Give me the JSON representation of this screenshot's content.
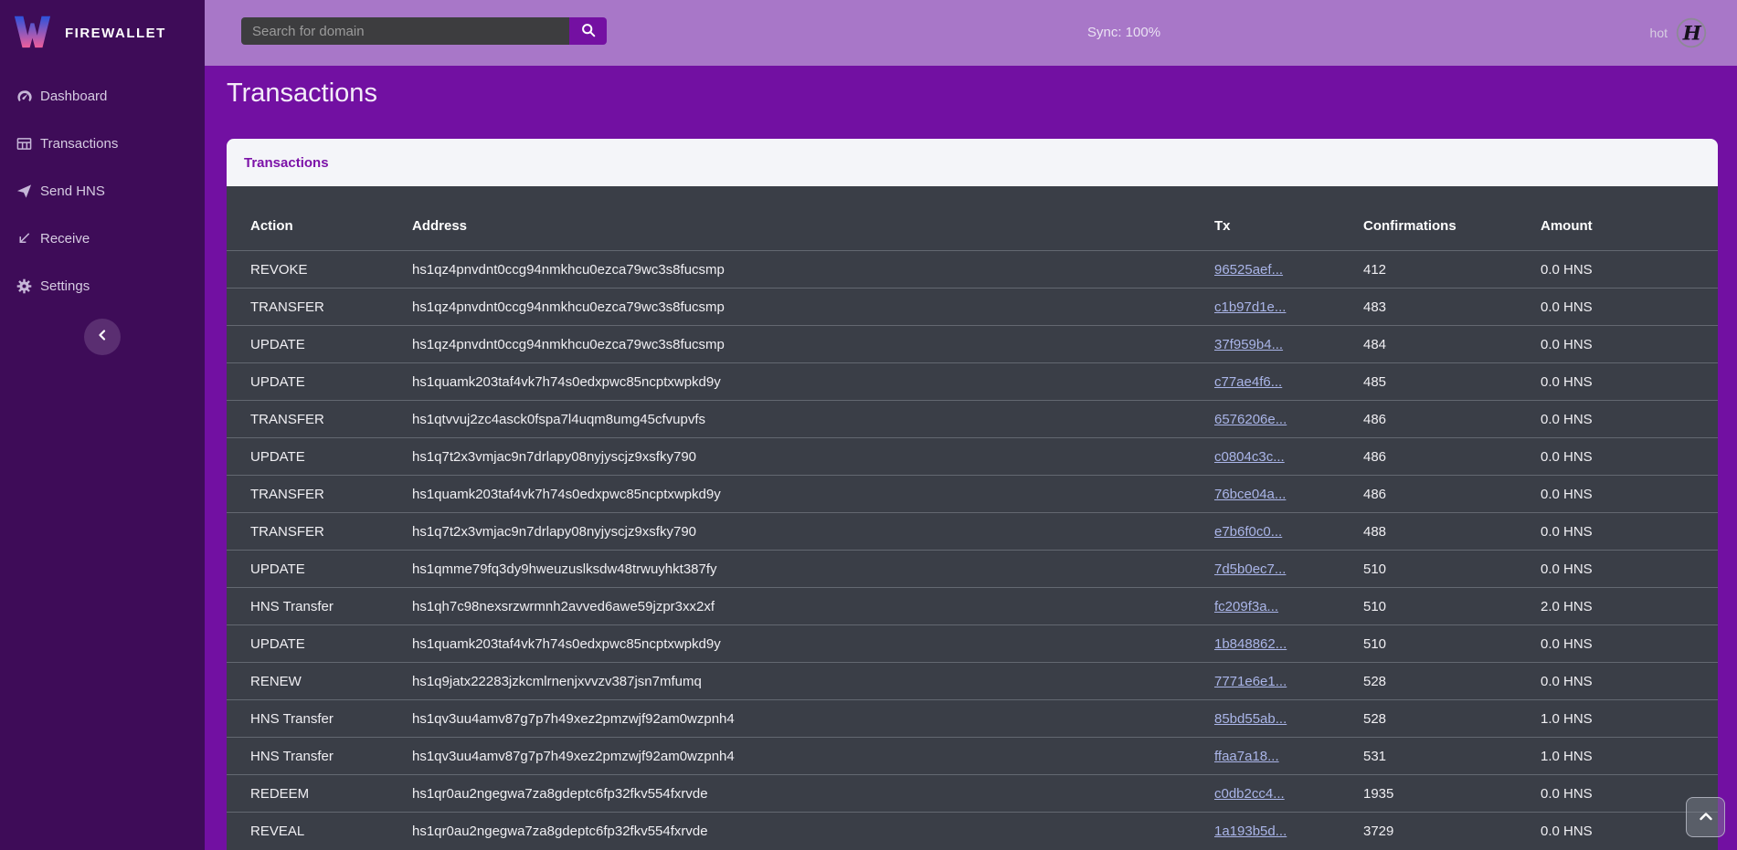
{
  "brand": {
    "name": "FIREWALLET",
    "logo_icon": "firewallet-w-logo"
  },
  "topbar": {
    "search_placeholder": "Search for domain",
    "search_icon": "magnifier",
    "sync_label": "Sync: 100%",
    "wallet_label": "hot",
    "wallet_avatar_icon": "handshake-logo"
  },
  "sidebar": {
    "items": [
      {
        "label": "Dashboard",
        "icon": "dashboard-gauge"
      },
      {
        "label": "Transactions",
        "icon": "table-grid"
      },
      {
        "label": "Send HNS",
        "icon": "paper-plane"
      },
      {
        "label": "Receive",
        "icon": "arrow-down-left"
      },
      {
        "label": "Settings",
        "icon": "gear"
      }
    ],
    "collapse_icon": "chevron-left"
  },
  "page": {
    "title": "Transactions"
  },
  "card": {
    "title": "Transactions"
  },
  "table": {
    "columns": [
      "Action",
      "Address",
      "Tx",
      "Confirmations",
      "Amount"
    ],
    "rows": [
      {
        "action": "REVOKE",
        "address": "hs1qz4pnvdnt0ccg94nmkhcu0ezca79wc3s8fucsmp",
        "tx": "96525aef...",
        "confirmations": "412",
        "amount": "0.0 HNS"
      },
      {
        "action": "TRANSFER",
        "address": "hs1qz4pnvdnt0ccg94nmkhcu0ezca79wc3s8fucsmp",
        "tx": "c1b97d1e...",
        "confirmations": "483",
        "amount": "0.0 HNS"
      },
      {
        "action": "UPDATE",
        "address": "hs1qz4pnvdnt0ccg94nmkhcu0ezca79wc3s8fucsmp",
        "tx": "37f959b4...",
        "confirmations": "484",
        "amount": "0.0 HNS"
      },
      {
        "action": "UPDATE",
        "address": "hs1quamk203taf4vk7h74s0edxpwc85ncptxwpkd9y",
        "tx": "c77ae4f6...",
        "confirmations": "485",
        "amount": "0.0 HNS"
      },
      {
        "action": "TRANSFER",
        "address": "hs1qtvvuj2zc4asck0fspa7l4uqm8umg45cfvupvfs",
        "tx": "6576206e...",
        "confirmations": "486",
        "amount": "0.0 HNS"
      },
      {
        "action": "UPDATE",
        "address": "hs1q7t2x3vmjac9n7drlapy08nyjyscjz9xsfky790",
        "tx": "c0804c3c...",
        "confirmations": "486",
        "amount": "0.0 HNS"
      },
      {
        "action": "TRANSFER",
        "address": "hs1quamk203taf4vk7h74s0edxpwc85ncptxwpkd9y",
        "tx": "76bce04a...",
        "confirmations": "486",
        "amount": "0.0 HNS"
      },
      {
        "action": "TRANSFER",
        "address": "hs1q7t2x3vmjac9n7drlapy08nyjyscjz9xsfky790",
        "tx": "e7b6f0c0...",
        "confirmations": "488",
        "amount": "0.0 HNS"
      },
      {
        "action": "UPDATE",
        "address": "hs1qmme79fq3dy9hweuzuslksdw48trwuyhkt387fy",
        "tx": "7d5b0ec7...",
        "confirmations": "510",
        "amount": "0.0 HNS"
      },
      {
        "action": "HNS Transfer",
        "address": "hs1qh7c98nexsrzwrmnh2avved6awe59jzpr3xx2xf",
        "tx": "fc209f3a...",
        "confirmations": "510",
        "amount": "2.0 HNS"
      },
      {
        "action": "UPDATE",
        "address": "hs1quamk203taf4vk7h74s0edxpwc85ncptxwpkd9y",
        "tx": "1b848862...",
        "confirmations": "510",
        "amount": "0.0 HNS"
      },
      {
        "action": "RENEW",
        "address": "hs1q9jatx22283jzkcmlrnenjxvvzv387jsn7mfumq",
        "tx": "7771e6e1...",
        "confirmations": "528",
        "amount": "0.0 HNS"
      },
      {
        "action": "HNS Transfer",
        "address": "hs1qv3uu4amv87g7p7h49xez2pmzwjf92am0wzpnh4",
        "tx": "85bd55ab...",
        "confirmations": "528",
        "amount": "1.0 HNS"
      },
      {
        "action": "HNS Transfer",
        "address": "hs1qv3uu4amv87g7p7h49xez2pmzwjf92am0wzpnh4",
        "tx": "ffaa7a18...",
        "confirmations": "531",
        "amount": "1.0 HNS"
      },
      {
        "action": "REDEEM",
        "address": "hs1qr0au2ngegwa7za8gdeptc6fp32fkv554fxrvde",
        "tx": "c0db2cc4...",
        "confirmations": "1935",
        "amount": "0.0 HNS"
      },
      {
        "action": "REVEAL",
        "address": "hs1qr0au2ngegwa7za8gdeptc6fp32fkv554fxrvde",
        "tx": "1a193b5d...",
        "confirmations": "3729",
        "amount": "0.0 HNS"
      }
    ]
  },
  "colors": {
    "sidebar_bg": "#3e0c58",
    "topbar_bg": "#a877c8",
    "main_bg": "#7210a2",
    "card_header_bg": "#f4f5f9",
    "card_accent_text": "#7c12a8",
    "table_bg": "#3a3e47",
    "link": "#aab5e8",
    "logo_gradient_top": "#2b52dc",
    "logo_gradient_bottom": "#ef5e9b"
  }
}
